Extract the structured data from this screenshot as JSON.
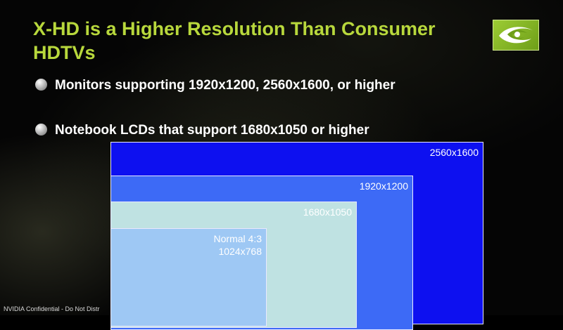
{
  "slide": {
    "title": "X-HD is a Higher Resolution Than Consumer HDTVs",
    "bullets": [
      "Monitors supporting 1920x1200, 2560x1600, or higher",
      "Notebook LCDs that support 1680x1050 or higher"
    ],
    "footer": "NVIDIA Confidential - Do Not Distr"
  },
  "diagram": {
    "boxes": [
      {
        "label": "2560x1600",
        "color": "#0d10f0"
      },
      {
        "label": "1920x1200",
        "color": "#3d6af6"
      },
      {
        "label": "1680x1050",
        "color": "#bfe2e2"
      },
      {
        "label_line1": "Normal 4:3",
        "label_line2": "1024x768",
        "color": "#9ec8f4"
      }
    ]
  },
  "logo": {
    "icon": "nvidia-eye-logo-icon",
    "color": "#8cc22a"
  }
}
